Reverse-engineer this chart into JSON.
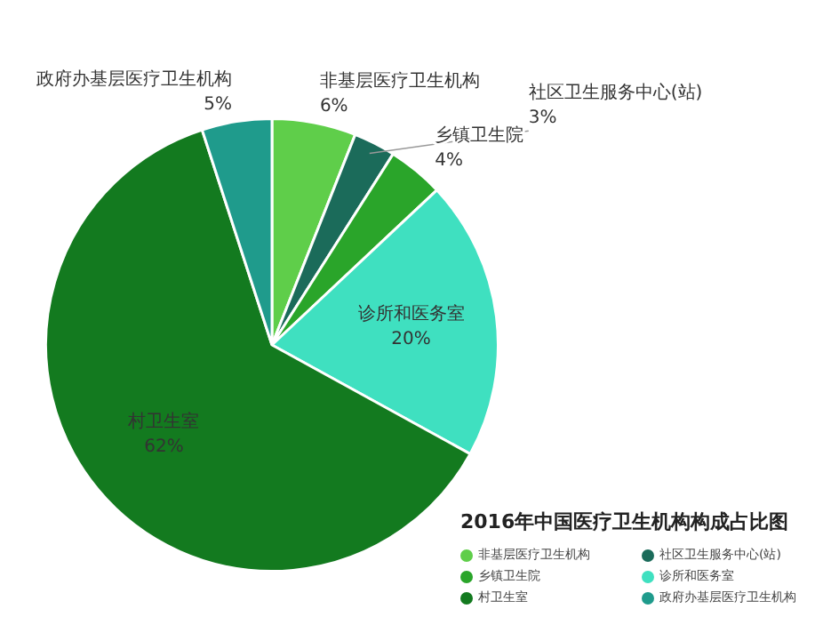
{
  "chart_data": {
    "type": "pie",
    "title": "2016年中国医疗卫生机构构成占比图",
    "categories": [
      "非基层医疗卫生机构",
      "社区卫生服务中心(站)",
      "乡镇卫生院",
      "诊所和医务室",
      "村卫生室",
      "政府办基层医疗卫生机构"
    ],
    "values": [
      6,
      3,
      4,
      20,
      62,
      5
    ],
    "value_labels": [
      "6%",
      "3%",
      "4%",
      "20%",
      "62%",
      "5%"
    ],
    "colors": [
      "#5fce4a",
      "#1b6b5a",
      "#2aa52a",
      "#3fe0c0",
      "#137a1f",
      "#1f9b8c"
    ],
    "legend": "bottom right"
  }
}
